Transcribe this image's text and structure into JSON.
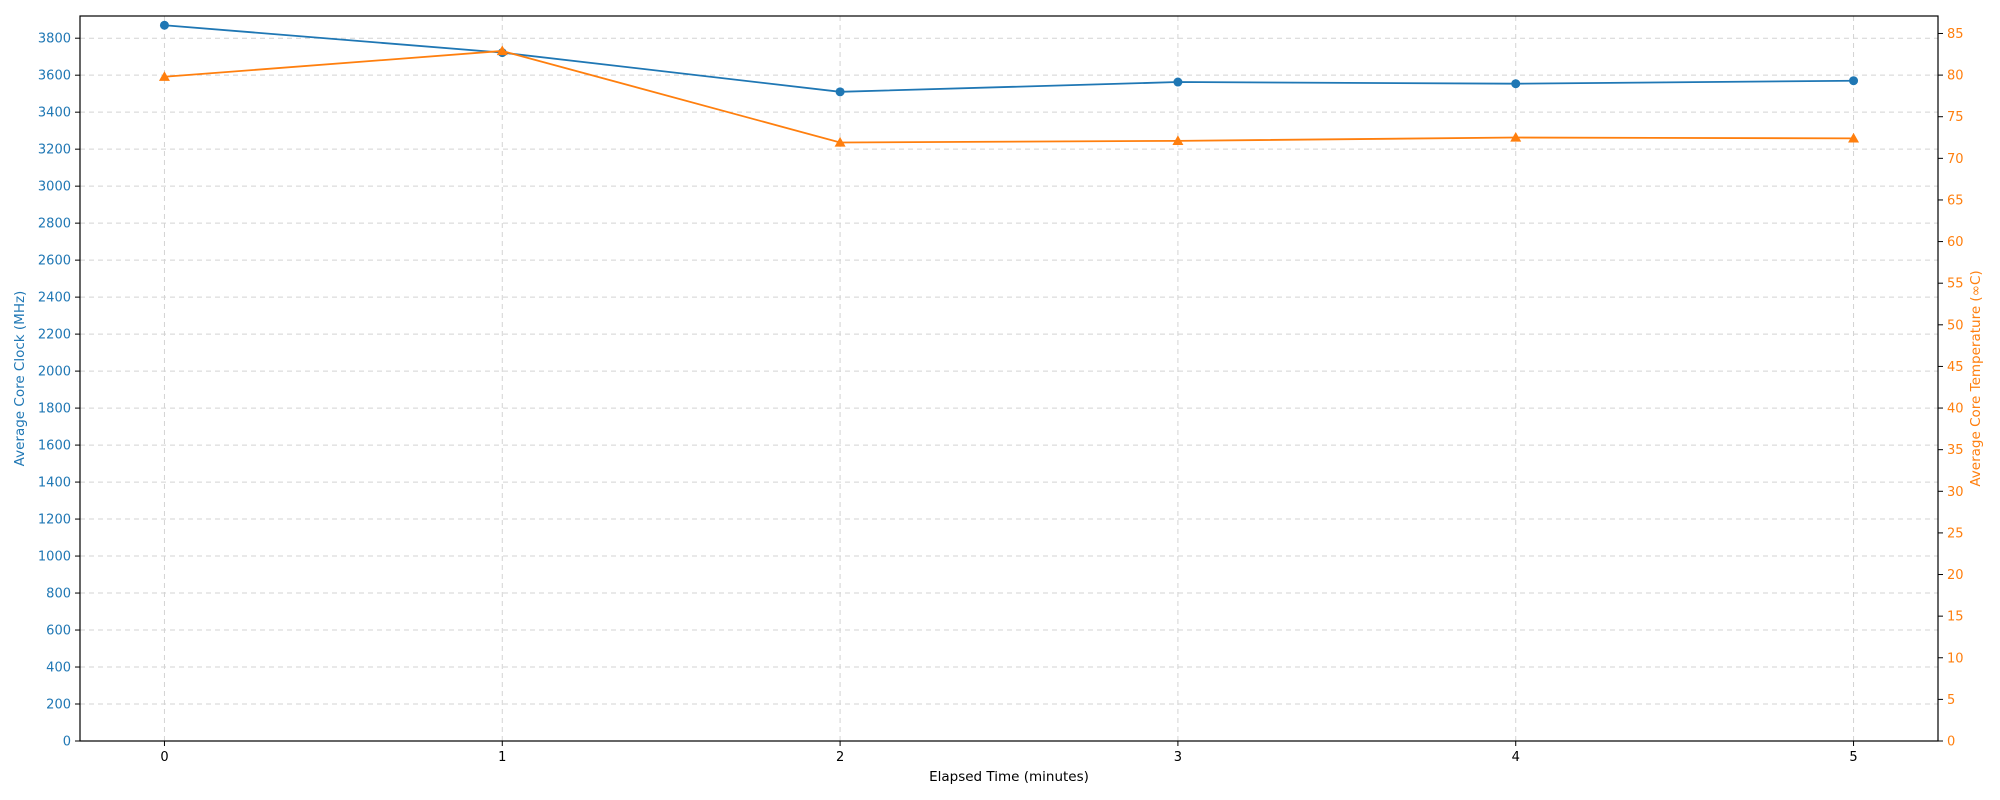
{
  "chart_data": {
    "type": "line",
    "x": [
      0,
      1,
      2,
      3,
      4,
      5
    ],
    "xlabel": "Elapsed Time (minutes)",
    "xlim": [
      -0.25,
      5.25
    ],
    "xticks": [
      "0",
      "1",
      "2",
      "3",
      "4",
      "5"
    ],
    "y_left": {
      "label": "Average Core Clock (MHz)",
      "ylim": [
        0,
        3920
      ],
      "ticks": [
        "0",
        "200",
        "400",
        "600",
        "800",
        "1000",
        "1200",
        "1400",
        "1600",
        "1800",
        "2000",
        "2200",
        "2400",
        "2600",
        "2800",
        "3000",
        "3200",
        "3400",
        "3600",
        "3800"
      ],
      "color": "#1f77b4"
    },
    "y_right": {
      "label": "Average Core Temperature (∞C)",
      "ylim": [
        0,
        87.1
      ],
      "ticks": [
        "0",
        "5",
        "10",
        "15",
        "20",
        "25",
        "30",
        "35",
        "40",
        "45",
        "50",
        "55",
        "60",
        "65",
        "70",
        "75",
        "80",
        "85"
      ],
      "color": "#ff7f0e"
    },
    "series": [
      {
        "axis": "left",
        "marker": "circle",
        "color": "#1f77b4",
        "values": [
          3870,
          3722,
          3510,
          3563,
          3554,
          3570
        ]
      },
      {
        "axis": "right",
        "marker": "triangle",
        "color": "#ff7f0e",
        "values": [
          79.8,
          82.9,
          71.9,
          72.1,
          72.5,
          72.4
        ]
      }
    ],
    "grid": true,
    "grid_color": "#d3d3d3"
  }
}
